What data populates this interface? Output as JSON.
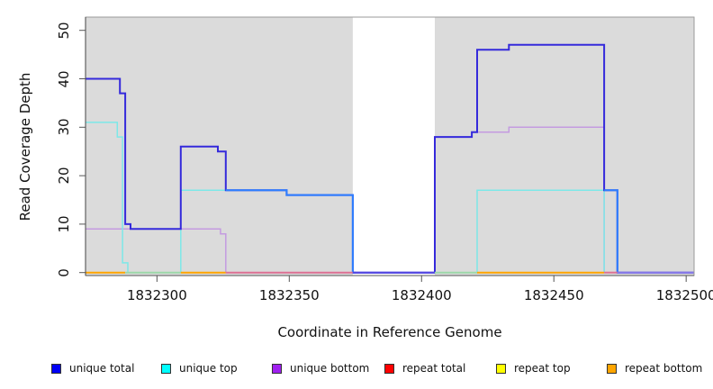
{
  "chart_data": {
    "type": "line",
    "subtype": "step-coverage",
    "title": "",
    "xlabel": "Coordinate in Reference Genome",
    "ylabel": "Read Coverage Depth",
    "xlim": [
      1832273,
      1832503
    ],
    "ylim": [
      0,
      52
    ],
    "x_ticks": [
      1832300,
      1832350,
      1832400,
      1832450,
      1832500
    ],
    "y_ticks": [
      0,
      10,
      20,
      30,
      40,
      50
    ],
    "grid": false,
    "legend_position": "bottom",
    "background": {
      "plot": "#DBDBDB",
      "gap_band": "#FFFFFF",
      "page": "#FFFFFF"
    },
    "gap_region": {
      "from": 1832374,
      "to": 1832405
    },
    "series": [
      {
        "name": "unique total",
        "legend_color": "#0000F5",
        "render_color": "#352ADB",
        "line_width": 2,
        "steps": [
          [
            1832273,
            40
          ],
          [
            1832286,
            37
          ],
          [
            1832288,
            10
          ],
          [
            1832290,
            9
          ],
          [
            1832309,
            26
          ],
          [
            1832323,
            25
          ],
          [
            1832326,
            17
          ],
          [
            1832349,
            16
          ],
          [
            1832374,
            0
          ],
          [
            1832405,
            28
          ],
          [
            1832419,
            29
          ],
          [
            1832421,
            46
          ],
          [
            1832433,
            47
          ],
          [
            1832469,
            17
          ],
          [
            1832474,
            0
          ],
          [
            1832503,
            0
          ]
        ],
        "color_overrides": [
          {
            "from": 1832326,
            "to": 1832375,
            "color": "#2E7FFF"
          },
          {
            "from": 1832469,
            "to": 1832475,
            "color": "#2E7FFF"
          }
        ]
      },
      {
        "name": "unique top",
        "legend_color": "#00FFFF",
        "render_color": "#7DE8E8",
        "line_width": 1.5,
        "steps": [
          [
            1832273,
            31
          ],
          [
            1832285,
            28
          ],
          [
            1832287,
            2
          ],
          [
            1832289,
            0
          ],
          [
            1832309,
            17
          ],
          [
            1832349,
            16
          ],
          [
            1832374,
            0
          ],
          [
            1832421,
            17
          ],
          [
            1832469,
            0
          ],
          [
            1832503,
            0
          ]
        ],
        "color_overrides": []
      },
      {
        "name": "unique bottom",
        "legend_color": "#A020F0",
        "render_color": "#C49BE0",
        "line_width": 1.5,
        "steps": [
          [
            1832273,
            9
          ],
          [
            1832324,
            8
          ],
          [
            1832326,
            0
          ],
          [
            1832405,
            28
          ],
          [
            1832419,
            29
          ],
          [
            1832433,
            30
          ],
          [
            1832469,
            0
          ],
          [
            1832503,
            0
          ]
        ],
        "color_overrides": []
      },
      {
        "name": "repeat total",
        "legend_color": "#FF0000",
        "render_color": null,
        "line_width": 2,
        "steps": [
          [
            1832273,
            0
          ],
          [
            1832503,
            0
          ]
        ],
        "color_overrides": []
      },
      {
        "name": "repeat top",
        "legend_color": "#FFFF00",
        "render_color": null,
        "line_width": 2,
        "steps": [
          [
            1832273,
            0
          ],
          [
            1832503,
            0
          ]
        ],
        "color_overrides": []
      },
      {
        "name": "repeat bottom",
        "legend_color": "#FFA500",
        "render_color": null,
        "line_width": 2,
        "steps": [
          [
            1832273,
            0
          ],
          [
            1832503,
            0
          ]
        ],
        "color_overrides": []
      }
    ],
    "zero_line_segments": [
      {
        "from": 1832273,
        "to": 1832288,
        "color": "#FFA500"
      },
      {
        "from": 1832288,
        "to": 1832309,
        "color": "#9CD8A9"
      },
      {
        "from": 1832309,
        "to": 1832326,
        "color": "#FFA500"
      },
      {
        "from": 1832326,
        "to": 1832374,
        "color": "#DD7093"
      },
      {
        "from": 1832374,
        "to": 1832405,
        "color": "#5145E0"
      },
      {
        "from": 1832405,
        "to": 1832421,
        "color": "#9CD8A9"
      },
      {
        "from": 1832421,
        "to": 1832469,
        "color": "#FFA500"
      },
      {
        "from": 1832469,
        "to": 1832474,
        "color": "#DD7093"
      },
      {
        "from": 1832474,
        "to": 1832503,
        "color": "#8678E8"
      }
    ],
    "legend_entries": [
      {
        "label": "unique total",
        "color": "#0000F5"
      },
      {
        "label": "unique top",
        "color": "#00FFFF"
      },
      {
        "label": "unique bottom",
        "color": "#A020F0"
      },
      {
        "label": "repeat total",
        "color": "#FF0000"
      },
      {
        "label": "repeat top",
        "color": "#FFFF00"
      },
      {
        "label": "repeat bottom",
        "color": "#FFA500"
      }
    ]
  }
}
